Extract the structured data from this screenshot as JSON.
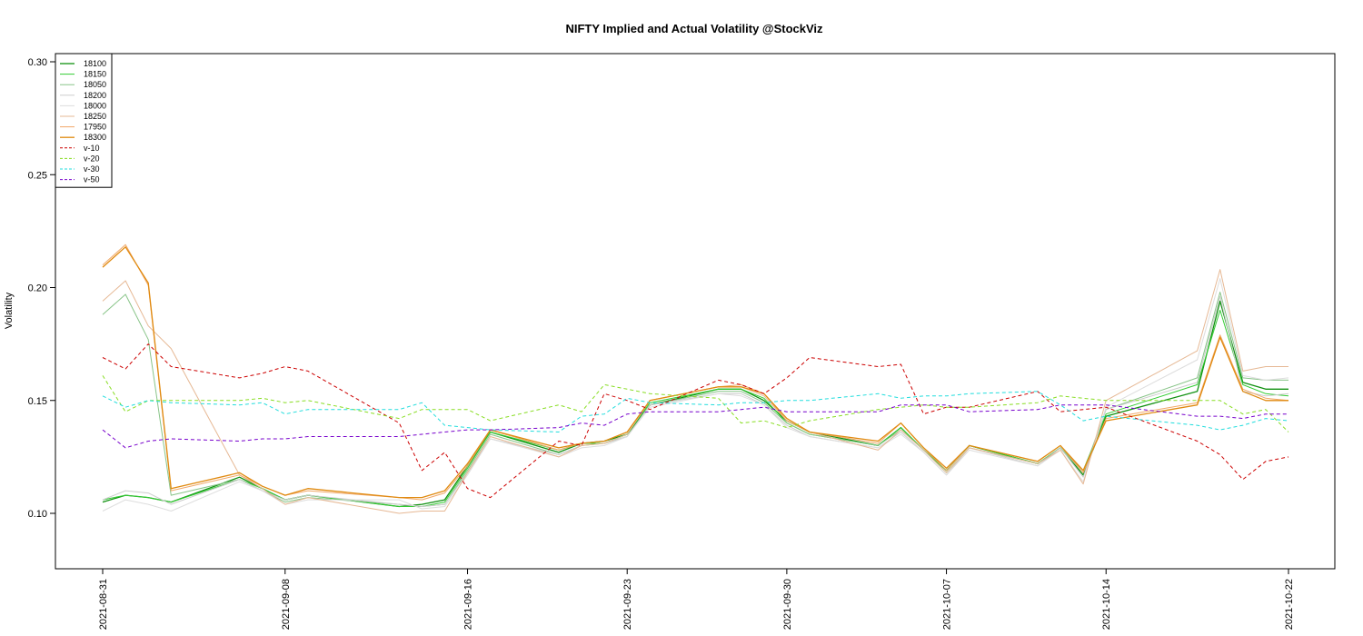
{
  "chart_data": {
    "type": "line",
    "title": "NIFTY Implied and Actual Volatility @StockViz",
    "xlabel": "",
    "ylabel": "Volatility",
    "ylim": [
      0.075,
      0.302
    ],
    "yticks": [
      "0.10",
      "0.15",
      "0.20",
      "0.25",
      "0.30"
    ],
    "xticks": [
      "2021-08-31",
      "2021-09-08",
      "2021-09-16",
      "2021-09-23",
      "2021-09-30",
      "2021-10-07",
      "2021-10-14",
      "2021-10-22"
    ],
    "grid": false,
    "legend_position": "top-left",
    "x": [
      "2021-08-31",
      "2021-09-01",
      "2021-09-02",
      "2021-09-03",
      "2021-09-06",
      "2021-09-07",
      "2021-09-08",
      "2021-09-09",
      "2021-09-13",
      "2021-09-14",
      "2021-09-15",
      "2021-09-16",
      "2021-09-17",
      "2021-09-20",
      "2021-09-21",
      "2021-09-22",
      "2021-09-23",
      "2021-09-24",
      "2021-09-27",
      "2021-09-28",
      "2021-09-29",
      "2021-09-30",
      "2021-10-01",
      "2021-10-04",
      "2021-10-05",
      "2021-10-06",
      "2021-10-07",
      "2021-10-08",
      "2021-10-11",
      "2021-10-12",
      "2021-10-13",
      "2021-10-14",
      "2021-10-18",
      "2021-10-19",
      "2021-10-20",
      "2021-10-21",
      "2021-10-22"
    ],
    "series": [
      {
        "name": "18100",
        "color": "#119111",
        "dash": "",
        "width": 1.3,
        "values": [
          0.105,
          0.108,
          0.107,
          0.105,
          0.116,
          0.111,
          0.106,
          0.108,
          0.103,
          0.104,
          0.106,
          0.121,
          0.136,
          0.127,
          0.131,
          0.132,
          0.135,
          0.148,
          0.155,
          0.155,
          0.15,
          0.141,
          0.136,
          0.13,
          0.138,
          0.128,
          0.119,
          0.13,
          0.122,
          0.129,
          0.117,
          0.143,
          0.154,
          0.194,
          0.158,
          0.155,
          0.155
        ]
      },
      {
        "name": "18150",
        "color": "#33cc33",
        "dash": "",
        "width": 1.0,
        "values": [
          0.106,
          0.108,
          0.107,
          0.105,
          0.115,
          0.111,
          0.106,
          0.108,
          0.103,
          0.103,
          0.105,
          0.12,
          0.136,
          0.128,
          0.131,
          0.131,
          0.135,
          0.149,
          0.155,
          0.155,
          0.151,
          0.14,
          0.135,
          0.13,
          0.138,
          0.128,
          0.119,
          0.13,
          0.122,
          0.129,
          0.119,
          0.144,
          0.157,
          0.19,
          0.157,
          0.153,
          0.152
        ]
      },
      {
        "name": "18050",
        "color": "#88c488",
        "dash": "",
        "width": 1.0,
        "values": [
          0.188,
          0.197,
          0.177,
          0.108,
          0.115,
          0.11,
          0.105,
          0.107,
          0.104,
          0.103,
          0.104,
          0.119,
          0.135,
          0.126,
          0.13,
          0.131,
          0.134,
          0.148,
          0.154,
          0.154,
          0.149,
          0.14,
          0.135,
          0.13,
          0.137,
          0.128,
          0.118,
          0.129,
          0.122,
          0.129,
          0.118,
          0.146,
          0.16,
          0.198,
          0.16,
          0.159,
          0.159
        ]
      },
      {
        "name": "18200",
        "color": "#cccccc",
        "dash": "",
        "width": 1.0,
        "values": [
          0.106,
          0.11,
          0.109,
          0.104,
          0.115,
          0.11,
          0.106,
          0.108,
          0.104,
          0.103,
          0.104,
          0.118,
          0.133,
          0.126,
          0.13,
          0.131,
          0.134,
          0.148,
          0.153,
          0.153,
          0.148,
          0.139,
          0.134,
          0.129,
          0.136,
          0.127,
          0.117,
          0.129,
          0.121,
          0.129,
          0.116,
          0.146,
          0.158,
          0.196,
          0.154,
          0.152,
          0.153
        ]
      },
      {
        "name": "18000",
        "color": "#dddddd",
        "dash": "",
        "width": 1.0,
        "values": [
          0.101,
          0.106,
          0.104,
          0.101,
          0.114,
          0.11,
          0.104,
          0.106,
          0.106,
          0.102,
          0.103,
          0.117,
          0.133,
          0.125,
          0.129,
          0.13,
          0.134,
          0.147,
          0.153,
          0.152,
          0.148,
          0.138,
          0.134,
          0.129,
          0.135,
          0.127,
          0.117,
          0.128,
          0.121,
          0.128,
          0.114,
          0.147,
          0.168,
          0.204,
          0.161,
          0.159,
          0.16
        ]
      },
      {
        "name": "18250",
        "color": "#e6b894",
        "dash": "",
        "width": 1.0,
        "values": [
          0.194,
          0.203,
          0.183,
          0.173,
          0.117,
          0.111,
          0.104,
          0.107,
          0.1,
          0.101,
          0.101,
          0.118,
          0.134,
          0.125,
          0.13,
          0.131,
          0.135,
          0.15,
          0.156,
          0.156,
          0.152,
          0.141,
          0.136,
          0.128,
          0.137,
          0.128,
          0.118,
          0.129,
          0.122,
          0.128,
          0.113,
          0.15,
          0.172,
          0.208,
          0.163,
          0.165,
          0.165
        ]
      },
      {
        "name": "17950",
        "color": "#f0a868",
        "dash": "",
        "width": 1.0,
        "values": [
          0.21,
          0.219,
          0.201,
          0.11,
          0.117,
          0.112,
          0.108,
          0.11,
          0.107,
          0.106,
          0.109,
          0.121,
          0.137,
          0.128,
          0.131,
          0.132,
          0.136,
          0.15,
          0.156,
          0.157,
          0.153,
          0.141,
          0.136,
          0.131,
          0.14,
          0.129,
          0.119,
          0.13,
          0.123,
          0.13,
          0.118,
          0.142,
          0.149,
          0.179,
          0.155,
          0.151,
          0.15
        ]
      },
      {
        "name": "18300",
        "color": "#e08a10",
        "dash": "",
        "width": 1.3,
        "values": [
          0.209,
          0.218,
          0.202,
          0.111,
          0.118,
          0.112,
          0.108,
          0.111,
          0.107,
          0.107,
          0.11,
          0.122,
          0.137,
          0.129,
          0.131,
          0.132,
          0.136,
          0.15,
          0.156,
          0.156,
          0.153,
          0.142,
          0.136,
          0.132,
          0.14,
          0.129,
          0.12,
          0.13,
          0.123,
          0.13,
          0.119,
          0.141,
          0.148,
          0.178,
          0.154,
          0.15,
          0.15
        ]
      },
      {
        "name": "v-10",
        "color": "#cc0000",
        "dash": "4,3",
        "width": 1.0,
        "values": [
          0.169,
          0.164,
          0.175,
          0.165,
          0.16,
          0.162,
          0.165,
          0.163,
          0.14,
          0.119,
          0.127,
          0.111,
          0.107,
          0.132,
          0.13,
          0.153,
          0.15,
          0.146,
          0.159,
          0.157,
          0.153,
          0.16,
          0.169,
          0.165,
          0.166,
          0.144,
          0.147,
          0.147,
          0.154,
          0.145,
          0.146,
          0.147,
          0.132,
          0.126,
          0.115,
          0.123,
          0.125
        ]
      },
      {
        "name": "v-20",
        "color": "#88dd22",
        "dash": "4,3",
        "width": 1.0,
        "values": [
          0.161,
          0.145,
          0.15,
          0.15,
          0.15,
          0.151,
          0.149,
          0.15,
          0.142,
          0.146,
          0.146,
          0.146,
          0.141,
          0.148,
          0.145,
          0.157,
          0.155,
          0.153,
          0.151,
          0.14,
          0.141,
          0.138,
          0.141,
          0.146,
          0.147,
          0.148,
          0.147,
          0.147,
          0.149,
          0.152,
          0.151,
          0.15,
          0.15,
          0.15,
          0.144,
          0.146,
          0.136
        ]
      },
      {
        "name": "v-30",
        "color": "#22dddd",
        "dash": "4,3",
        "width": 1.0,
        "values": [
          0.152,
          0.147,
          0.15,
          0.149,
          0.148,
          0.149,
          0.144,
          0.146,
          0.146,
          0.149,
          0.139,
          0.138,
          0.137,
          0.136,
          0.143,
          0.144,
          0.151,
          0.149,
          0.148,
          0.149,
          0.149,
          0.15,
          0.15,
          0.153,
          0.151,
          0.152,
          0.152,
          0.153,
          0.154,
          0.148,
          0.141,
          0.143,
          0.139,
          0.137,
          0.139,
          0.142,
          0.141
        ]
      },
      {
        "name": "v-50",
        "color": "#7700cc",
        "dash": "4,3",
        "width": 1.0,
        "values": [
          0.137,
          0.129,
          0.132,
          0.133,
          0.132,
          0.133,
          0.133,
          0.134,
          0.134,
          0.135,
          0.136,
          0.137,
          0.137,
          0.138,
          0.14,
          0.139,
          0.144,
          0.145,
          0.145,
          0.146,
          0.147,
          0.145,
          0.145,
          0.145,
          0.148,
          0.148,
          0.148,
          0.145,
          0.146,
          0.148,
          0.148,
          0.148,
          0.143,
          0.143,
          0.142,
          0.144,
          0.144
        ]
      }
    ]
  }
}
